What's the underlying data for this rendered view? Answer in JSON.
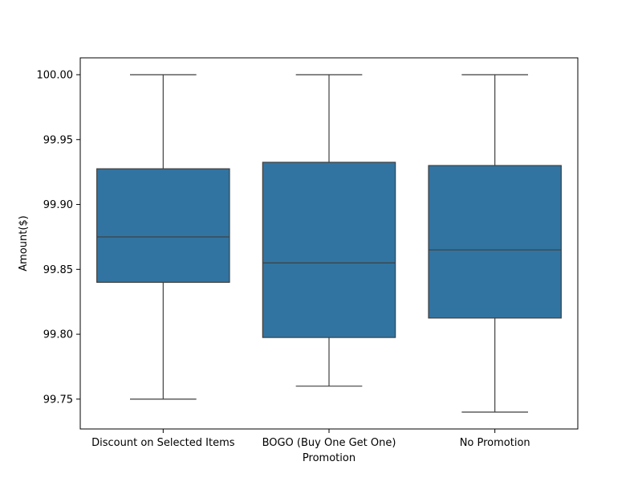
{
  "chart_data": {
    "type": "box",
    "title": "",
    "xlabel": "Promotion",
    "ylabel": "Amount($)",
    "categories": [
      "Discount on Selected Items",
      "BOGO (Buy One Get One)",
      "No Promotion"
    ],
    "ylim": [
      99.727,
      100.013
    ],
    "yticks": [
      "99.75",
      "99.80",
      "99.85",
      "99.90",
      "99.95",
      "100.00"
    ],
    "box_color": "#3274a1",
    "line_color": "#3f3f3f",
    "boxes": [
      {
        "category": "Discount on Selected Items",
        "whisker_low": 99.75,
        "q1": 99.84,
        "median": 99.875,
        "q3": 99.9275,
        "whisker_high": 100.0
      },
      {
        "category": "BOGO (Buy One Get One)",
        "whisker_low": 99.76,
        "q1": 99.7975,
        "median": 99.855,
        "q3": 99.9325,
        "whisker_high": 100.0
      },
      {
        "category": "No Promotion",
        "whisker_low": 99.74,
        "q1": 99.8125,
        "median": 99.865,
        "q3": 99.93,
        "whisker_high": 100.0
      }
    ]
  }
}
